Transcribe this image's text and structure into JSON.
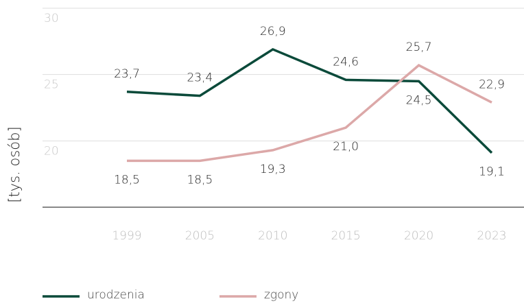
{
  "chart_data": {
    "type": "line",
    "y_label": "[tys. osób]",
    "categories": [
      "1999",
      "2005",
      "2010",
      "2015",
      "2020",
      "2023"
    ],
    "series": [
      {
        "name": "urodzenia",
        "color": "#0b4a3a",
        "values": [
          23.7,
          23.4,
          26.9,
          24.6,
          24.5,
          19.1
        ],
        "value_labels": [
          "23,7",
          "23,4",
          "26,9",
          "24,6",
          "24,5",
          "19,1"
        ]
      },
      {
        "name": "zgony",
        "color": "#dca8a8",
        "values": [
          18.5,
          18.5,
          19.3,
          21.0,
          25.7,
          22.9
        ],
        "value_labels": [
          "18,5",
          "18,5",
          "19,3",
          "21,0",
          "25,7",
          "22,9"
        ]
      }
    ],
    "ylim": [
      15,
      30
    ],
    "yticks": [
      20,
      25,
      30
    ],
    "grid": true,
    "legend": "bottom"
  }
}
